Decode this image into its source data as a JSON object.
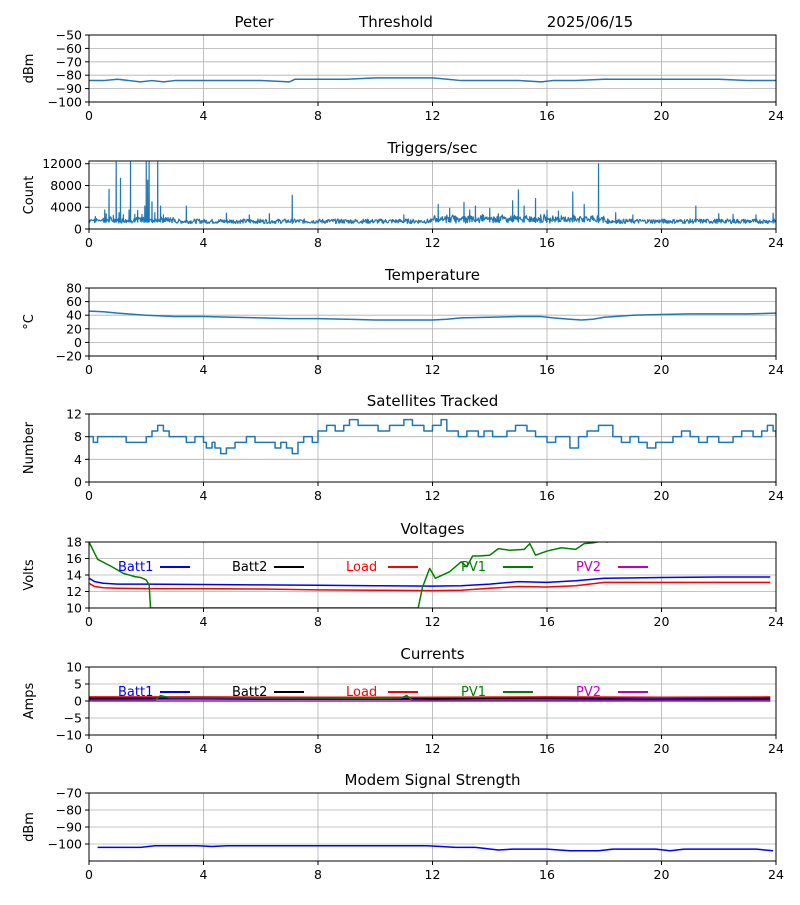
{
  "header": {
    "station": "Peter",
    "mode": "Threshold",
    "date": "2025/06/15"
  },
  "chart_data": [
    {
      "id": "signal",
      "type": "line",
      "title": "",
      "xlabel": "",
      "ylabel": "dBm",
      "xlim": [
        0,
        24
      ],
      "ylim": [
        -100,
        -50
      ],
      "xticks": [
        0,
        4,
        8,
        12,
        16,
        20,
        24
      ],
      "yticks": [
        -100,
        -90,
        -80,
        -70,
        -60,
        -50
      ],
      "ytick_labels": [
        "−100",
        "−90",
        "−80",
        "−70",
        "−60",
        "−50"
      ],
      "grid": true,
      "series": [
        {
          "color": "#1f77b4",
          "x": [
            0,
            0.5,
            1.0,
            1.4,
            1.8,
            2.2,
            2.6,
            3.0,
            4,
            5,
            6,
            7,
            7.2,
            8,
            9,
            10,
            11,
            12,
            13,
            14,
            15,
            15.8,
            16.2,
            17,
            18,
            19,
            20,
            21,
            22,
            23,
            24
          ],
          "y": [
            -84,
            -84,
            -83,
            -84,
            -85,
            -84,
            -85,
            -84,
            -84,
            -84,
            -84,
            -85,
            -83,
            -83,
            -83,
            -82,
            -82,
            -82,
            -84,
            -84,
            -84,
            -85,
            -84,
            -84,
            -83,
            -83,
            -83,
            -83,
            -83,
            -84,
            -84
          ]
        }
      ]
    },
    {
      "id": "triggers",
      "type": "line",
      "title": "Triggers/sec",
      "xlabel": "",
      "ylabel": "Count",
      "xlim": [
        0,
        24
      ],
      "ylim": [
        0,
        12500
      ],
      "xticks": [
        0,
        4,
        8,
        12,
        16,
        20,
        24
      ],
      "yticks": [
        0,
        4000,
        8000,
        12000
      ],
      "ytick_labels": [
        "0",
        "4000",
        "8000",
        "12000"
      ],
      "grid": true,
      "series": [
        {
          "color": "#1f77b4",
          "base_level": 1300,
          "noise": 600,
          "spikes": [
            {
              "x": 0.55,
              "y": 3500
            },
            {
              "x": 0.6,
              "y": 2800
            },
            {
              "x": 0.7,
              "y": 7300
            },
            {
              "x": 0.85,
              "y": 2500
            },
            {
              "x": 0.95,
              "y": 12300
            },
            {
              "x": 1.05,
              "y": 3000
            },
            {
              "x": 1.1,
              "y": 9300
            },
            {
              "x": 1.2,
              "y": 2600
            },
            {
              "x": 1.4,
              "y": 3500
            },
            {
              "x": 1.45,
              "y": 12300
            },
            {
              "x": 1.6,
              "y": 2700
            },
            {
              "x": 1.7,
              "y": 3400
            },
            {
              "x": 1.85,
              "y": 2700
            },
            {
              "x": 1.95,
              "y": 4200
            },
            {
              "x": 2.0,
              "y": 12300
            },
            {
              "x": 2.05,
              "y": 9000
            },
            {
              "x": 2.1,
              "y": 12300
            },
            {
              "x": 2.2,
              "y": 5000
            },
            {
              "x": 2.3,
              "y": 3000
            },
            {
              "x": 2.4,
              "y": 12300
            },
            {
              "x": 2.5,
              "y": 4200
            },
            {
              "x": 2.6,
              "y": 2600
            },
            {
              "x": 3.4,
              "y": 4200
            },
            {
              "x": 4.8,
              "y": 2900
            },
            {
              "x": 5.6,
              "y": 2600
            },
            {
              "x": 6.3,
              "y": 2800
            },
            {
              "x": 7.1,
              "y": 6200
            },
            {
              "x": 11.0,
              "y": 2600
            },
            {
              "x": 12.2,
              "y": 4500
            },
            {
              "x": 12.6,
              "y": 3800
            },
            {
              "x": 13.1,
              "y": 4900
            },
            {
              "x": 13.3,
              "y": 3500
            },
            {
              "x": 13.5,
              "y": 4200
            },
            {
              "x": 14.0,
              "y": 3800
            },
            {
              "x": 14.3,
              "y": 2800
            },
            {
              "x": 14.8,
              "y": 5200
            },
            {
              "x": 15.0,
              "y": 7200
            },
            {
              "x": 15.2,
              "y": 4200
            },
            {
              "x": 15.6,
              "y": 5600
            },
            {
              "x": 16.0,
              "y": 3500
            },
            {
              "x": 16.4,
              "y": 3300
            },
            {
              "x": 16.9,
              "y": 6800
            },
            {
              "x": 17.3,
              "y": 4500
            },
            {
              "x": 17.8,
              "y": 12000
            },
            {
              "x": 18.4,
              "y": 3000
            },
            {
              "x": 19.0,
              "y": 2600
            },
            {
              "x": 21.2,
              "y": 4200
            },
            {
              "x": 22.0,
              "y": 2800
            },
            {
              "x": 22.5,
              "y": 2700
            },
            {
              "x": 23.3,
              "y": 2600
            },
            {
              "x": 23.9,
              "y": 2900
            }
          ]
        }
      ]
    },
    {
      "id": "temperature",
      "type": "line",
      "title": "Temperature",
      "xlabel": "",
      "ylabel": "°C",
      "xlim": [
        0,
        24
      ],
      "ylim": [
        -20,
        80
      ],
      "xticks": [
        0,
        4,
        8,
        12,
        16,
        20,
        24
      ],
      "yticks": [
        -20,
        0,
        20,
        40,
        60,
        80
      ],
      "ytick_labels": [
        "−20",
        "0",
        "20",
        "40",
        "60",
        "80"
      ],
      "grid": true,
      "series": [
        {
          "color": "#1f77b4",
          "x": [
            0,
            0.5,
            1,
            2,
            3,
            4,
            5,
            6,
            7,
            8,
            9,
            10,
            11,
            12,
            12.5,
            13,
            14,
            15,
            15.8,
            16.2,
            16.8,
            17.2,
            17.6,
            18,
            19,
            20,
            21,
            22,
            23,
            24
          ],
          "y": [
            46,
            45,
            43,
            40,
            38,
            38,
            37,
            36,
            35,
            35,
            34,
            33,
            33,
            33,
            34,
            36,
            37,
            38,
            38,
            36,
            34,
            33,
            34,
            37,
            40,
            41,
            42,
            42,
            42,
            43
          ]
        }
      ]
    },
    {
      "id": "satellites",
      "type": "line",
      "title": "Satellites Tracked",
      "xlabel": "",
      "ylabel": "Number",
      "xlim": [
        0,
        24
      ],
      "ylim": [
        0,
        12
      ],
      "xticks": [
        0,
        4,
        8,
        12,
        16,
        20,
        24
      ],
      "yticks": [
        0,
        4,
        8,
        12
      ],
      "ytick_labels": [
        "0",
        "4",
        "8",
        "12"
      ],
      "grid": true,
      "series": [
        {
          "color": "#1f77b4",
          "step": true,
          "x": [
            0,
            0.15,
            0.3,
            1.0,
            1.3,
            2.0,
            2.2,
            2.4,
            2.6,
            2.8,
            3.0,
            3.4,
            3.7,
            4.0,
            4.1,
            4.3,
            4.4,
            4.6,
            4.8,
            5.1,
            5.5,
            5.8,
            6.0,
            6.5,
            6.7,
            6.9,
            7.1,
            7.3,
            7.5,
            7.8,
            8.0,
            8.3,
            8.6,
            8.9,
            9.1,
            9.4,
            9.7,
            10.1,
            10.5,
            11.0,
            11.3,
            11.7,
            12.0,
            12.3,
            12.5,
            12.9,
            13.2,
            13.6,
            13.8,
            14.1,
            14.6,
            14.9,
            15.3,
            15.6,
            16.0,
            16.3,
            16.8,
            17.1,
            17.4,
            17.8,
            18.3,
            18.6,
            18.9,
            19.2,
            19.5,
            19.8,
            20.1,
            20.4,
            20.7,
            21.0,
            21.3,
            21.6,
            22.0,
            22.5,
            22.8,
            23.2,
            23.5,
            23.7,
            23.9,
            24
          ],
          "y": [
            8,
            7,
            8,
            8,
            7,
            8,
            9,
            10,
            9,
            8,
            8,
            7,
            8,
            7,
            6,
            7,
            6,
            5,
            6,
            7,
            8,
            7,
            7,
            6,
            7,
            6,
            5,
            7,
            8,
            7,
            9,
            10,
            9,
            10,
            11,
            10,
            10,
            9,
            10,
            11,
            10,
            9,
            10,
            11,
            9,
            8,
            9,
            8,
            9,
            8,
            9,
            10,
            9,
            8,
            7,
            8,
            6,
            8,
            9,
            10,
            8,
            7,
            8,
            7,
            6,
            7,
            7,
            8,
            9,
            8,
            7,
            8,
            7,
            8,
            9,
            8,
            9,
            10,
            9,
            8
          ]
        }
      ]
    },
    {
      "id": "voltages",
      "type": "line",
      "title": "Voltages",
      "xlabel": "",
      "ylabel": "Volts",
      "xlim": [
        0,
        24
      ],
      "ylim": [
        10,
        18
      ],
      "xticks": [
        0,
        4,
        8,
        12,
        16,
        20,
        24
      ],
      "yticks": [
        10,
        12,
        14,
        16,
        18
      ],
      "ytick_labels": [
        "10",
        "12",
        "14",
        "16",
        "18"
      ],
      "grid": true,
      "legend_position": "top",
      "series": [
        {
          "name": "Batt1",
          "color": "#0000ff",
          "x": [
            0,
            0.2,
            0.5,
            1,
            2,
            4,
            6,
            8,
            10,
            12,
            13,
            14,
            15,
            16,
            17,
            18,
            20,
            22,
            23.8
          ],
          "y": [
            13.6,
            13.2,
            13.0,
            12.9,
            12.9,
            12.85,
            12.8,
            12.75,
            12.7,
            12.65,
            12.7,
            12.9,
            13.2,
            13.1,
            13.3,
            13.6,
            13.7,
            13.75,
            13.75
          ]
        },
        {
          "name": "Batt2",
          "color": "#000000",
          "x": [],
          "y": []
        },
        {
          "name": "Load",
          "color": "#ff0000",
          "x": [
            0,
            0.2,
            0.5,
            1,
            2,
            4,
            6,
            8,
            10,
            12,
            13,
            14,
            15,
            16,
            17,
            18,
            20,
            22,
            23.8
          ],
          "y": [
            13.0,
            12.6,
            12.45,
            12.4,
            12.35,
            12.35,
            12.3,
            12.2,
            12.15,
            12.1,
            12.15,
            12.4,
            12.6,
            12.55,
            12.7,
            13.1,
            13.1,
            13.1,
            13.1
          ]
        },
        {
          "name": "PV1",
          "color": "#008000",
          "x": [
            0,
            0.3,
            0.8,
            1.2,
            1.6,
            1.8,
            2.0,
            2.1,
            2.15,
            11.5,
            11.65,
            11.9,
            12.1,
            12.6,
            13.0,
            13.2,
            13.4,
            13.6,
            14.0,
            14.3,
            14.7,
            15.2,
            15.4,
            15.6,
            16.0,
            16.5,
            17.0,
            17.3,
            17.6,
            17.9,
            18.1,
            18.4
          ],
          "y": [
            18.0,
            15.9,
            15.0,
            14.2,
            13.8,
            13.7,
            13.4,
            12.8,
            10.0,
            10.0,
            12.5,
            14.8,
            13.6,
            14.4,
            15.6,
            15.0,
            16.3,
            16.3,
            16.4,
            17.2,
            17.0,
            17.1,
            17.8,
            16.4,
            16.9,
            17.3,
            17.1,
            17.8,
            17.9,
            18.1,
            18.0,
            18.2
          ]
        },
        {
          "name": "PV2",
          "color": "#bf00bf",
          "x": [],
          "y": []
        }
      ]
    },
    {
      "id": "currents",
      "type": "line",
      "title": "Currents",
      "xlabel": "",
      "ylabel": "Amps",
      "xlim": [
        0,
        24
      ],
      "ylim": [
        -10,
        10
      ],
      "xticks": [
        0,
        4,
        8,
        12,
        16,
        20,
        24
      ],
      "yticks": [
        -10,
        -5,
        0,
        5,
        10
      ],
      "ytick_labels": [
        "−10",
        "−5",
        "0",
        "5",
        "10"
      ],
      "grid": true,
      "legend_position": "top",
      "series": [
        {
          "name": "Batt1",
          "color": "#0000ff",
          "x": [
            0,
            2,
            4,
            6,
            8,
            10,
            12,
            14,
            16,
            18,
            20,
            22,
            23.8
          ],
          "y": [
            0.5,
            0.6,
            0.6,
            0.5,
            0.5,
            0.5,
            0.5,
            0.6,
            0.6,
            0.5,
            0.5,
            0.5,
            0.5
          ]
        },
        {
          "name": "Batt2",
          "color": "#000000",
          "x": [
            0,
            4,
            8,
            11.5,
            12,
            16,
            20,
            23.8
          ],
          "y": [
            0.9,
            1.0,
            0.9,
            0.9,
            0.7,
            0.9,
            1.0,
            0.9
          ]
        },
        {
          "name": "Load",
          "color": "#ff0000",
          "x": [
            0,
            4,
            8,
            12,
            16,
            20,
            23.8
          ],
          "y": [
            1.2,
            1.2,
            1.1,
            1.1,
            1.2,
            1.1,
            1.2
          ]
        },
        {
          "name": "PV1",
          "color": "#008000",
          "x": [
            0,
            2.3,
            2.5,
            2.8,
            4,
            6,
            8,
            10,
            10.9,
            11.1,
            11.3,
            12,
            16,
            20,
            23.8
          ],
          "y": [
            0.2,
            0.2,
            1.6,
            1.0,
            1.0,
            0.9,
            0.9,
            0.8,
            0.9,
            1.6,
            0.2,
            0.1,
            0.1,
            0.1,
            0.1
          ]
        },
        {
          "name": "PV2",
          "color": "#bf00bf",
          "x": [
            0,
            4,
            8,
            12,
            16,
            20,
            23.8
          ],
          "y": [
            0.0,
            0.0,
            0.0,
            0.0,
            0.0,
            0.0,
            0.0
          ]
        }
      ]
    },
    {
      "id": "modem",
      "type": "line",
      "title": "Modem Signal Strength",
      "xlabel": "",
      "ylabel": "dBm",
      "xlim": [
        0,
        24
      ],
      "ylim": [
        -110,
        -70
      ],
      "xticks": [
        0,
        4,
        8,
        12,
        16,
        20,
        24
      ],
      "yticks": [
        -100,
        -90,
        -80,
        -70
      ],
      "ytick_labels": [
        "−100",
        "−90",
        "−80",
        "−70"
      ],
      "grid": true,
      "series": [
        {
          "color": "#0000ff",
          "x": [
            0.3,
            1.8,
            2.3,
            3.3,
            3.8,
            4.3,
            4.8,
            5.3,
            11.8,
            12.3,
            12.8,
            13.5,
            14.3,
            14.8,
            16.0,
            16.8,
            17.8,
            18.3,
            19.8,
            20.3,
            20.8,
            23.3,
            23.9
          ],
          "y": [
            -102,
            -102,
            -101,
            -101,
            -101,
            -101.5,
            -101,
            -101,
            -101,
            -101.5,
            -102,
            -102,
            -103.5,
            -103,
            -103,
            -104,
            -104,
            -103,
            -103,
            -104,
            -103,
            -103,
            -104
          ]
        }
      ]
    }
  ]
}
